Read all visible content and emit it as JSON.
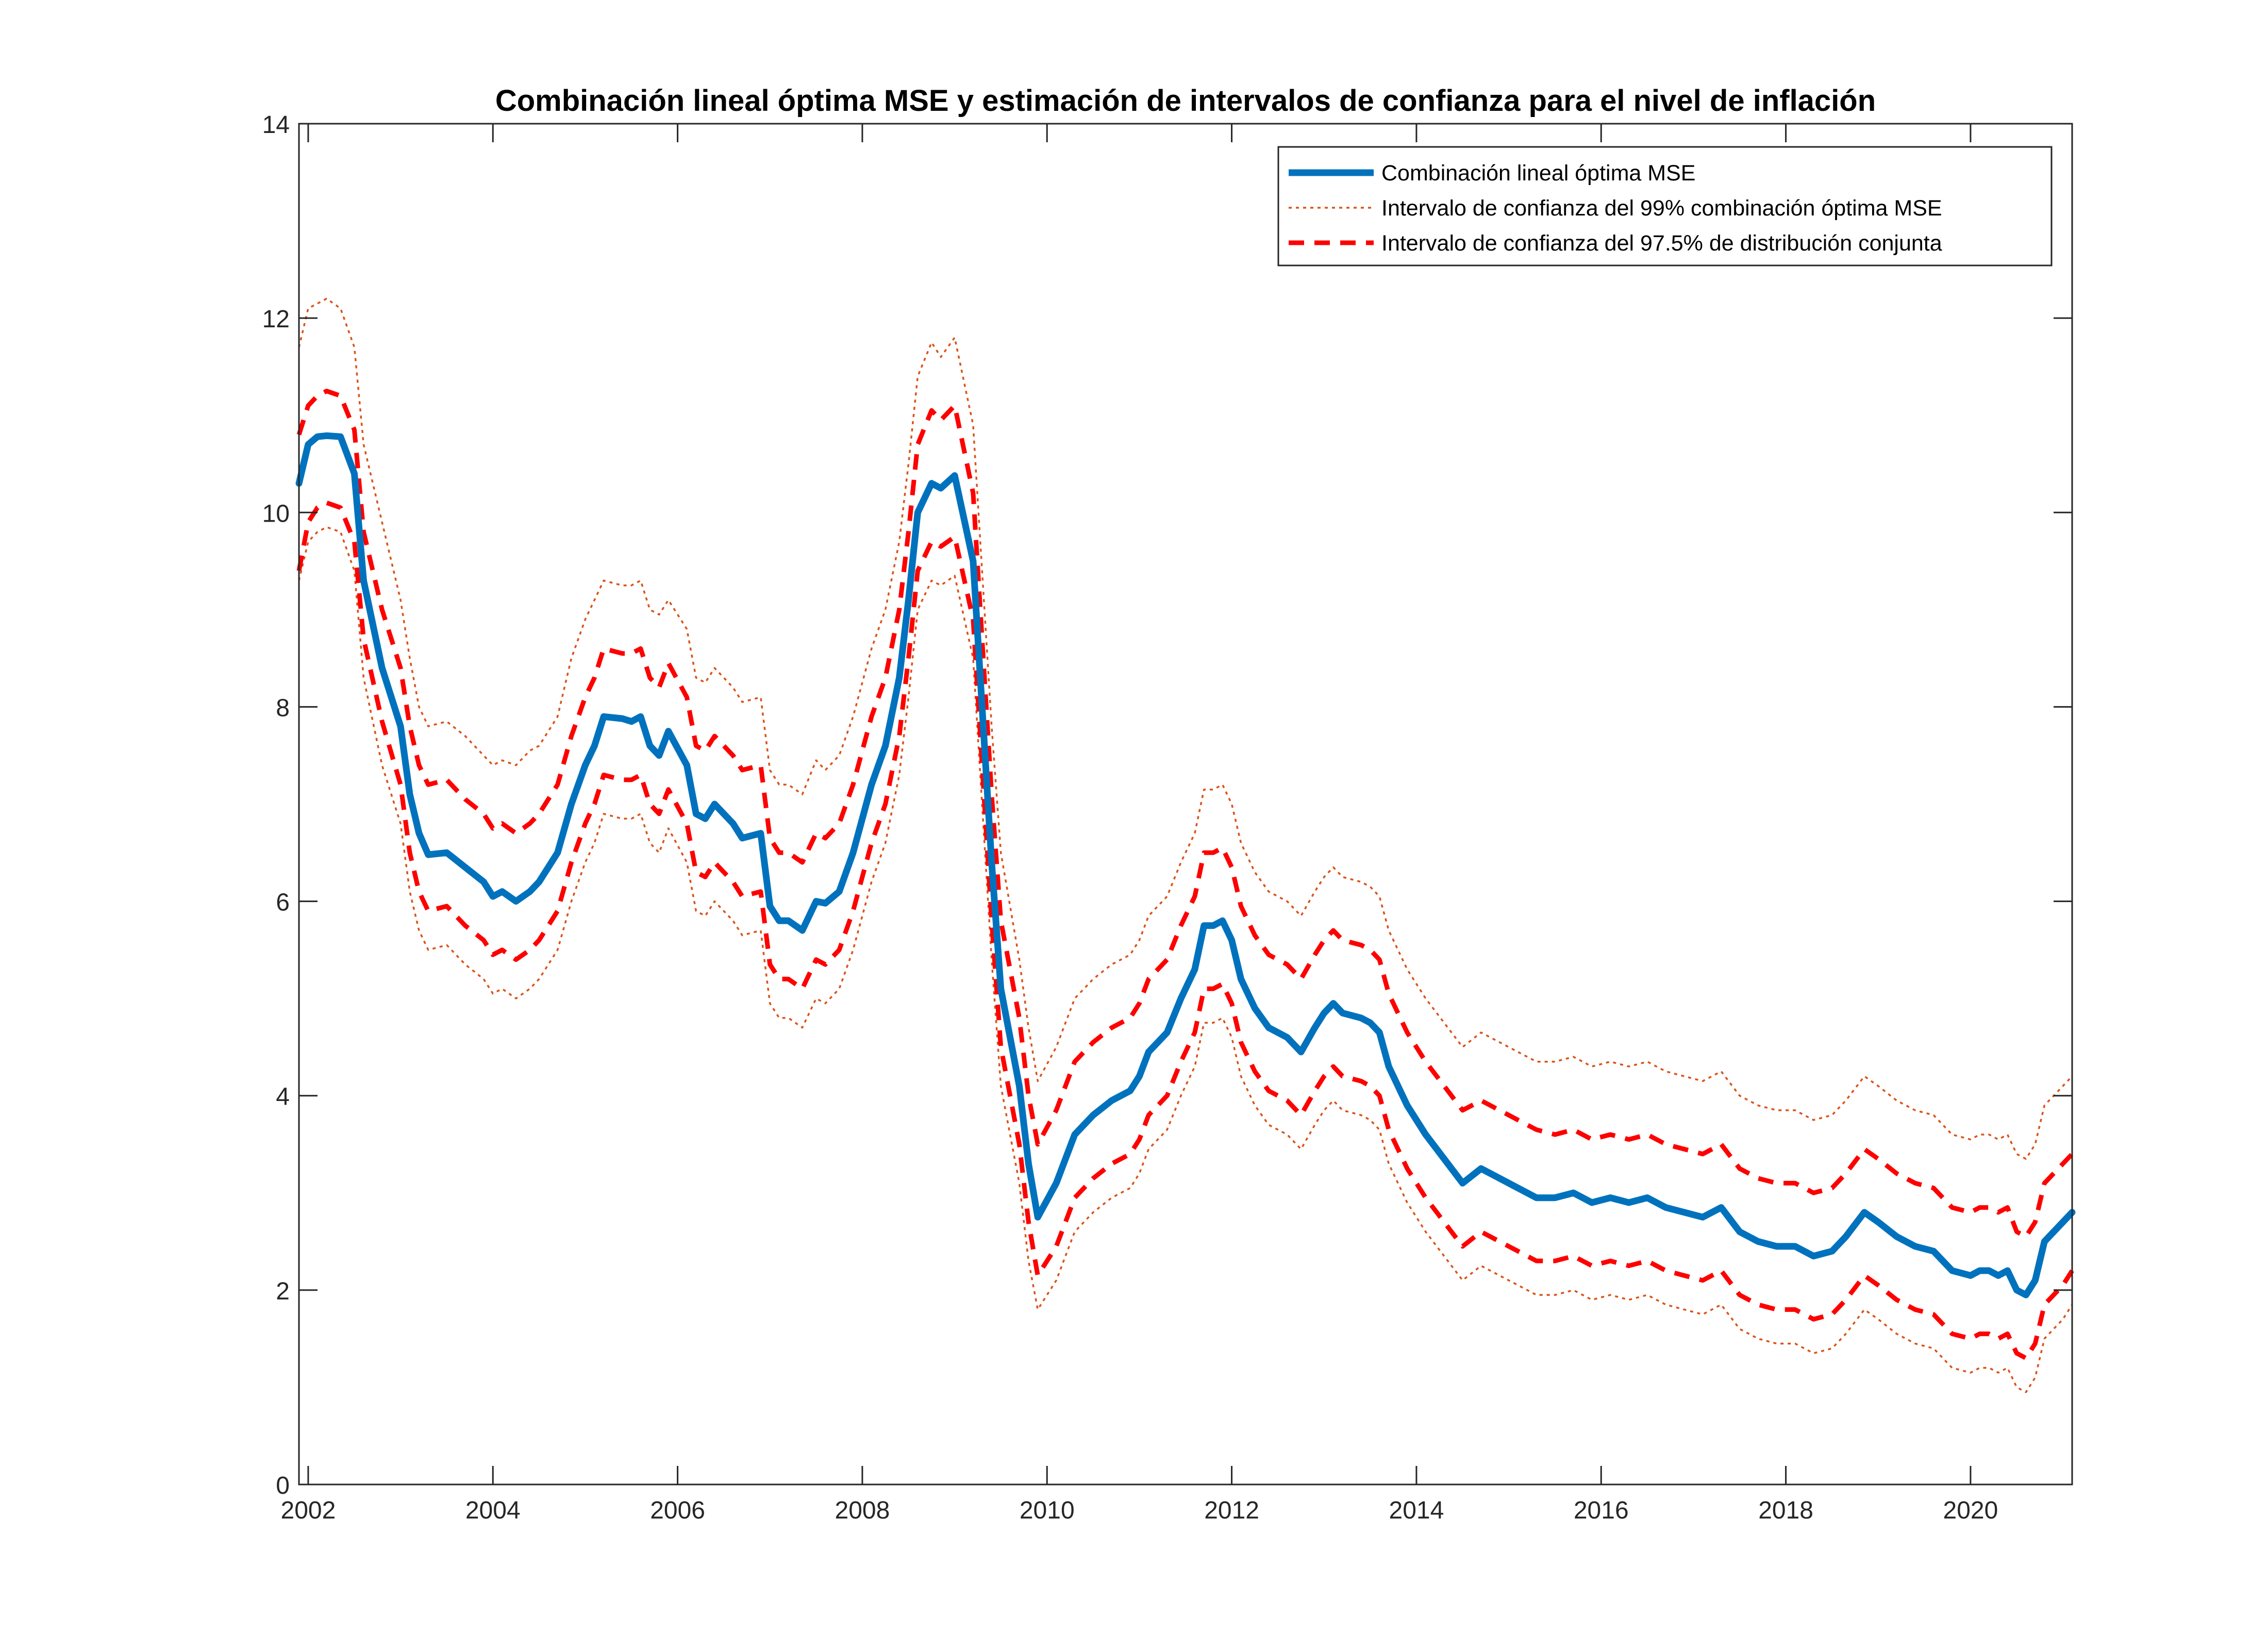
{
  "chart_data": {
    "type": "line",
    "title": "Combinación lineal óptima MSE y estimación de intervalos de confianza para el nivel de inflación",
    "xlabel": "",
    "ylabel": "",
    "xlim": [
      2001.9,
      2021.1
    ],
    "ylim": [
      0,
      14
    ],
    "x_ticks": [
      2002,
      2004,
      2006,
      2008,
      2010,
      2012,
      2014,
      2016,
      2018,
      2020
    ],
    "y_ticks": [
      0,
      2,
      4,
      6,
      8,
      10,
      12,
      14
    ],
    "grid": false,
    "legend_position": "top-right",
    "x": [
      2001.9,
      2002.0,
      2002.1,
      2002.2,
      2002.35,
      2002.5,
      2002.6,
      2002.8,
      2003.0,
      2003.1,
      2003.2,
      2003.3,
      2003.5,
      2003.7,
      2003.9,
      2004.0,
      2004.1,
      2004.25,
      2004.4,
      2004.5,
      2004.7,
      2004.85,
      2005.0,
      2005.1,
      2005.2,
      2005.4,
      2005.5,
      2005.6,
      2005.7,
      2005.8,
      2005.9,
      2006.1,
      2006.2,
      2006.3,
      2006.4,
      2006.6,
      2006.7,
      2006.9,
      2007.0,
      2007.1,
      2007.2,
      2007.35,
      2007.5,
      2007.6,
      2007.75,
      2007.9,
      2008.1,
      2008.25,
      2008.4,
      2008.5,
      2008.6,
      2008.75,
      2008.85,
      2009.0,
      2009.2,
      2009.4,
      2009.5,
      2009.7,
      2009.8,
      2009.9,
      2010.1,
      2010.3,
      2010.5,
      2010.7,
      2010.9,
      2011.0,
      2011.1,
      2011.3,
      2011.45,
      2011.6,
      2011.7,
      2011.8,
      2011.9,
      2012.0,
      2012.1,
      2012.25,
      2012.4,
      2012.6,
      2012.75,
      2012.9,
      2013.0,
      2013.1,
      2013.2,
      2013.4,
      2013.5,
      2013.6,
      2013.7,
      2013.9,
      2014.1,
      2014.3,
      2014.5,
      2014.7,
      2014.9,
      2015.1,
      2015.3,
      2015.5,
      2015.7,
      2015.9,
      2016.1,
      2016.3,
      2016.5,
      2016.7,
      2016.9,
      2017.1,
      2017.3,
      2017.5,
      2017.7,
      2017.9,
      2018.1,
      2018.3,
      2018.5,
      2018.65,
      2018.85,
      2019.0,
      2019.2,
      2019.4,
      2019.6,
      2019.8,
      2020.0,
      2020.1,
      2020.2,
      2020.3,
      2020.4,
      2020.5,
      2020.6,
      2020.7,
      2020.8,
      2021.0,
      2021.1
    ],
    "series": [
      {
        "name": "Combinación lineal óptima MSE",
        "style": "solid-thick",
        "color": "#0072BD",
        "values": [
          10.3,
          10.7,
          10.78,
          10.79,
          10.78,
          10.4,
          9.3,
          8.4,
          7.8,
          7.1,
          6.7,
          6.48,
          6.5,
          6.35,
          6.2,
          6.05,
          6.1,
          6.0,
          6.1,
          6.2,
          6.5,
          7.0,
          7.4,
          7.6,
          7.9,
          7.88,
          7.85,
          7.9,
          7.6,
          7.5,
          7.75,
          7.4,
          6.9,
          6.85,
          7.0,
          6.8,
          6.65,
          6.7,
          5.95,
          5.8,
          5.8,
          5.7,
          6.0,
          5.98,
          6.1,
          6.5,
          7.2,
          7.6,
          8.3,
          9.1,
          10.0,
          10.3,
          10.25,
          10.38,
          9.5,
          6.4,
          5.1,
          4.1,
          3.3,
          2.75,
          3.1,
          3.6,
          3.8,
          3.95,
          4.05,
          4.2,
          4.45,
          4.65,
          5.0,
          5.3,
          5.75,
          5.75,
          5.8,
          5.6,
          5.2,
          4.9,
          4.7,
          4.6,
          4.45,
          4.7,
          4.85,
          4.95,
          4.85,
          4.8,
          4.75,
          4.65,
          4.3,
          3.9,
          3.6,
          3.35,
          3.1,
          3.25,
          3.15,
          3.05,
          2.95,
          2.95,
          3.0,
          2.9,
          2.95,
          2.9,
          2.95,
          2.85,
          2.8,
          2.75,
          2.85,
          2.6,
          2.5,
          2.45,
          2.45,
          2.35,
          2.4,
          2.55,
          2.8,
          2.7,
          2.55,
          2.45,
          2.4,
          2.2,
          2.15,
          2.2,
          2.2,
          2.15,
          2.2,
          2.0,
          1.95,
          2.1,
          2.5,
          2.7,
          2.8
        ]
      },
      {
        "name": "Intervalo de confianza del 99% combinación óptima MSE",
        "style": "dotted-thin",
        "color": "#D95319",
        "upper": [
          11.7,
          12.1,
          12.15,
          12.2,
          12.1,
          11.7,
          10.7,
          9.9,
          9.1,
          8.5,
          8.0,
          7.8,
          7.85,
          7.7,
          7.5,
          7.4,
          7.45,
          7.4,
          7.55,
          7.6,
          7.9,
          8.5,
          8.9,
          9.1,
          9.3,
          9.25,
          9.25,
          9.3,
          9.0,
          8.95,
          9.1,
          8.8,
          8.3,
          8.25,
          8.4,
          8.2,
          8.05,
          8.1,
          7.35,
          7.2,
          7.2,
          7.1,
          7.45,
          7.35,
          7.5,
          7.9,
          8.6,
          9.0,
          9.7,
          10.5,
          11.4,
          11.75,
          11.6,
          11.8,
          10.9,
          7.8,
          6.5,
          5.4,
          4.7,
          4.15,
          4.5,
          5.0,
          5.2,
          5.35,
          5.45,
          5.6,
          5.85,
          6.05,
          6.4,
          6.7,
          7.15,
          7.15,
          7.2,
          7.0,
          6.6,
          6.3,
          6.1,
          6.0,
          5.85,
          6.1,
          6.25,
          6.35,
          6.25,
          6.2,
          6.15,
          6.05,
          5.7,
          5.3,
          5.0,
          4.75,
          4.5,
          4.65,
          4.55,
          4.45,
          4.35,
          4.35,
          4.4,
          4.3,
          4.35,
          4.3,
          4.35,
          4.25,
          4.2,
          4.15,
          4.25,
          4.0,
          3.9,
          3.85,
          3.85,
          3.75,
          3.8,
          3.95,
          4.2,
          4.1,
          3.95,
          3.85,
          3.8,
          3.6,
          3.55,
          3.6,
          3.6,
          3.55,
          3.6,
          3.4,
          3.35,
          3.5,
          3.9,
          4.1,
          4.2
        ],
        "lower": [
          9.3,
          9.7,
          9.8,
          9.85,
          9.8,
          9.4,
          8.3,
          7.4,
          6.8,
          6.1,
          5.7,
          5.5,
          5.55,
          5.35,
          5.2,
          5.05,
          5.1,
          5.0,
          5.1,
          5.2,
          5.5,
          6.0,
          6.4,
          6.6,
          6.9,
          6.85,
          6.85,
          6.9,
          6.6,
          6.5,
          6.75,
          6.4,
          5.9,
          5.85,
          6.0,
          5.8,
          5.65,
          5.7,
          4.95,
          4.8,
          4.8,
          4.7,
          5.0,
          4.95,
          5.1,
          5.5,
          6.2,
          6.6,
          7.3,
          8.1,
          9.0,
          9.3,
          9.25,
          9.35,
          8.5,
          5.4,
          4.1,
          3.1,
          2.3,
          1.8,
          2.1,
          2.6,
          2.8,
          2.95,
          3.05,
          3.2,
          3.45,
          3.65,
          4.0,
          4.3,
          4.75,
          4.75,
          4.8,
          4.6,
          4.2,
          3.9,
          3.7,
          3.6,
          3.45,
          3.7,
          3.85,
          3.95,
          3.85,
          3.8,
          3.75,
          3.65,
          3.3,
          2.9,
          2.6,
          2.35,
          2.1,
          2.25,
          2.15,
          2.05,
          1.95,
          1.95,
          2.0,
          1.9,
          1.95,
          1.9,
          1.95,
          1.85,
          1.8,
          1.75,
          1.85,
          1.6,
          1.5,
          1.45,
          1.45,
          1.35,
          1.4,
          1.55,
          1.8,
          1.7,
          1.55,
          1.45,
          1.4,
          1.2,
          1.15,
          1.2,
          1.2,
          1.15,
          1.2,
          1.0,
          0.95,
          1.1,
          1.5,
          1.7,
          1.85
        ]
      },
      {
        "name": "Intervalo de confianza del 97.5% de distribución conjunta",
        "style": "dashed-thick",
        "color": "#FF0000",
        "upper": [
          10.8,
          11.1,
          11.2,
          11.25,
          11.2,
          10.85,
          9.8,
          9.0,
          8.4,
          7.8,
          7.4,
          7.2,
          7.25,
          7.05,
          6.9,
          6.75,
          6.8,
          6.7,
          6.8,
          6.9,
          7.2,
          7.7,
          8.1,
          8.3,
          8.6,
          8.55,
          8.55,
          8.6,
          8.3,
          8.2,
          8.45,
          8.1,
          7.6,
          7.55,
          7.7,
          7.5,
          7.35,
          7.4,
          6.65,
          6.5,
          6.5,
          6.4,
          6.7,
          6.65,
          6.8,
          7.2,
          7.9,
          8.3,
          9.0,
          9.8,
          10.7,
          11.05,
          10.95,
          11.1,
          10.2,
          7.1,
          5.8,
          4.8,
          4.0,
          3.5,
          3.85,
          4.35,
          4.55,
          4.7,
          4.8,
          4.95,
          5.2,
          5.4,
          5.75,
          6.05,
          6.5,
          6.5,
          6.55,
          6.35,
          5.95,
          5.65,
          5.45,
          5.35,
          5.2,
          5.45,
          5.6,
          5.7,
          5.6,
          5.55,
          5.5,
          5.4,
          5.05,
          4.65,
          4.35,
          4.1,
          3.85,
          3.95,
          3.85,
          3.75,
          3.65,
          3.6,
          3.65,
          3.55,
          3.6,
          3.55,
          3.6,
          3.5,
          3.45,
          3.4,
          3.5,
          3.25,
          3.15,
          3.1,
          3.1,
          3.0,
          3.05,
          3.2,
          3.45,
          3.35,
          3.2,
          3.1,
          3.05,
          2.85,
          2.8,
          2.85,
          2.85,
          2.8,
          2.85,
          2.6,
          2.55,
          2.7,
          3.1,
          3.3,
          3.4
        ],
        "lower": [
          9.4,
          9.9,
          10.05,
          10.1,
          10.05,
          9.7,
          8.7,
          7.85,
          7.2,
          6.5,
          6.1,
          5.9,
          5.95,
          5.75,
          5.6,
          5.45,
          5.5,
          5.4,
          5.5,
          5.6,
          5.9,
          6.4,
          6.8,
          7.0,
          7.3,
          7.25,
          7.25,
          7.3,
          7.0,
          6.9,
          7.15,
          6.8,
          6.3,
          6.25,
          6.4,
          6.2,
          6.05,
          6.1,
          5.35,
          5.2,
          5.2,
          5.1,
          5.4,
          5.35,
          5.5,
          5.9,
          6.6,
          7.0,
          7.7,
          8.5,
          9.4,
          9.7,
          9.65,
          9.75,
          8.9,
          5.8,
          4.5,
          3.5,
          2.7,
          2.15,
          2.45,
          2.95,
          3.15,
          3.3,
          3.4,
          3.55,
          3.8,
          4.0,
          4.35,
          4.65,
          5.1,
          5.1,
          5.15,
          4.95,
          4.55,
          4.25,
          4.05,
          3.95,
          3.8,
          4.05,
          4.2,
          4.3,
          4.2,
          4.15,
          4.1,
          4.0,
          3.65,
          3.25,
          2.95,
          2.7,
          2.45,
          2.6,
          2.5,
          2.4,
          2.3,
          2.3,
          2.35,
          2.25,
          2.3,
          2.25,
          2.3,
          2.2,
          2.15,
          2.1,
          2.2,
          1.95,
          1.85,
          1.8,
          1.8,
          1.7,
          1.75,
          1.9,
          2.15,
          2.05,
          1.9,
          1.8,
          1.75,
          1.55,
          1.5,
          1.55,
          1.55,
          1.5,
          1.55,
          1.35,
          1.3,
          1.45,
          1.85,
          2.05,
          2.2
        ]
      }
    ]
  }
}
